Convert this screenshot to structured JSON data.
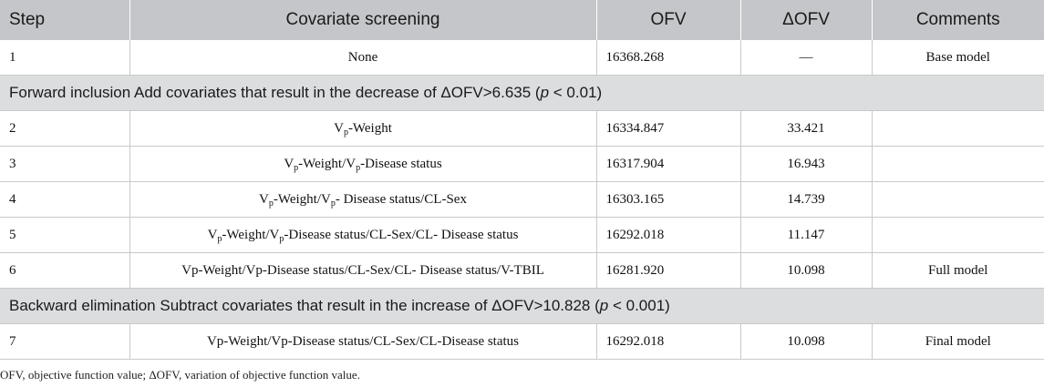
{
  "header": {
    "step": "Step",
    "screening": "Covariate screening",
    "ofv": "OFV",
    "delta_ofv": "ΔOFV",
    "comments": "Comments"
  },
  "rows": {
    "r1": {
      "step": "1",
      "screening": "None",
      "ofv": "16368.268",
      "delta": "—",
      "comment": "Base model"
    },
    "s1": {
      "pre": "Forward inclusion Add covariates that result in the decrease of ΔOFV>6.635 (",
      "p": "p",
      "post": " < 0.01)"
    },
    "r2": {
      "step": "2",
      "v": "V",
      "sub": "p",
      "rest": "-Weight",
      "ofv": "16334.847",
      "delta": "33.421",
      "comment": ""
    },
    "r3": {
      "step": "3",
      "v1": "V",
      "sub1": "p",
      "mid": "-Weight/V",
      "sub2": "p",
      "rest": "-Disease status",
      "ofv": "16317.904",
      "delta": "16.943",
      "comment": ""
    },
    "r4": {
      "step": "4",
      "v1": "V",
      "sub1": "p",
      "mid": "-Weight/V",
      "sub2": "p",
      "rest": "- Disease status/CL-Sex",
      "ofv": "16303.165",
      "delta": "14.739",
      "comment": ""
    },
    "r5": {
      "step": "5",
      "v1": "V",
      "sub1": "p",
      "mid": "-Weight/V",
      "sub2": "p",
      "rest": "-Disease status/CL-Sex/CL- Disease status",
      "ofv": "16292.018",
      "delta": "11.147",
      "comment": ""
    },
    "r6": {
      "step": "6",
      "screening": "Vp-Weight/Vp-Disease status/CL-Sex/CL- Disease status/V-TBIL",
      "ofv": "16281.920",
      "delta": "10.098",
      "comment": "Full model"
    },
    "s2": {
      "pre": "Backward elimination Subtract covariates that result in the increase of ΔOFV>10.828 (",
      "p": "p",
      "post": " < 0.001)"
    },
    "r7": {
      "step": "7",
      "screening": "Vp-Weight/Vp-Disease status/CL-Sex/CL-Disease status",
      "ofv": "16292.018",
      "delta": "10.098",
      "comment": "Final model"
    }
  },
  "footnote": "OFV, objective function value; ΔOFV, variation of objective function value."
}
